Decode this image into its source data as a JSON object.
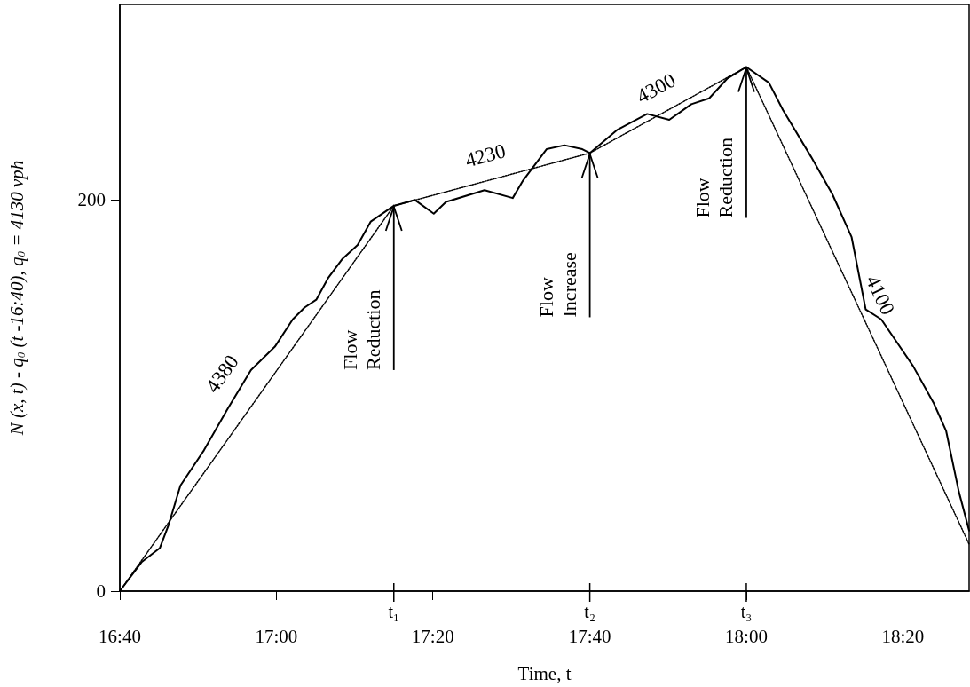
{
  "chart_data": {
    "type": "line",
    "xlabel": "Time, t",
    "ylabel": "N (x, t) - q$_{0}$ (t -16:40), q$_{0}$ = 4130 vph",
    "xlim": [
      16.667,
      18.474
    ],
    "ylim": [
      0,
      300
    ],
    "xticks": [
      {
        "value": 16.667,
        "label": "16:40"
      },
      {
        "value": 17,
        "label": "17:00"
      },
      {
        "value": 17.333,
        "label": "17:20"
      },
      {
        "value": 17.667,
        "label": "17:40"
      },
      {
        "value": 18,
        "label": "18:00"
      },
      {
        "value": 18.333,
        "label": "18:20"
      }
    ],
    "yticks": [
      0,
      200
    ],
    "grid": false,
    "marker": "none",
    "series": [
      {
        "color": "#000000",
        "line_style": "solid",
        "x": [
          16.667,
          16.714,
          16.752,
          16.771,
          16.796,
          16.846,
          16.896,
          16.946,
          16.997,
          17.035,
          17.06,
          17.085,
          17.11,
          17.141,
          17.173,
          17.201,
          17.25,
          17.295,
          17.335,
          17.361,
          17.443,
          17.503,
          17.525,
          17.575,
          17.613,
          17.651,
          17.667,
          17.726,
          17.789,
          17.836,
          17.883,
          17.921,
          17.959,
          18.0,
          18.048,
          18.078,
          18.138,
          18.183,
          18.224,
          18.254,
          18.287,
          18.355,
          18.399,
          18.425,
          18.452,
          18.474
        ],
        "values": [
          0,
          15,
          22,
          34,
          54,
          72,
          93,
          113,
          125,
          139,
          145,
          149,
          160,
          170,
          177,
          189,
          197,
          200,
          193,
          199,
          205,
          201,
          210,
          226,
          228,
          226,
          224,
          236,
          244,
          241,
          249,
          252,
          262,
          268,
          260,
          246,
          222,
          203,
          181,
          144,
          139,
          115,
          96,
          82,
          51,
          31
        ]
      },
      {
        "color": "#000000",
        "line_style": "dotted",
        "x": [
          16.667,
          17.25,
          17.667,
          18.0,
          18.474
        ],
        "values": [
          0,
          197,
          224,
          268,
          24
        ]
      }
    ],
    "annotations": [
      "4380",
      "4230",
      "4300",
      "4100",
      {
        "text": "Flow Reduction",
        "x": 17.25,
        "y": 197
      },
      {
        "text": "Flow Increase",
        "x": 17.667,
        "y": 224
      },
      {
        "text": "Flow Reduction",
        "x": 18.0,
        "y": 268
      },
      "t₁",
      "t₂",
      "t₃"
    ]
  }
}
